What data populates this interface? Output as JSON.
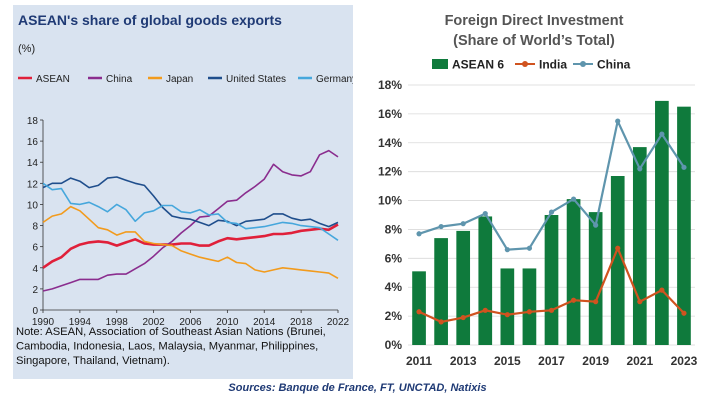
{
  "footer": {
    "sources": "Sources: Banque de France, FT, UNCTAD, Natixis"
  },
  "chart_data": [
    {
      "type": "line",
      "title": "ASEAN's share of global goods exports",
      "ylabel": "(%)",
      "ylim": [
        0,
        18
      ],
      "yticks": [
        0,
        2,
        4,
        6,
        8,
        10,
        12,
        14,
        16,
        18
      ],
      "xlim": [
        1990,
        2022
      ],
      "xticks": [
        1990,
        1994,
        1998,
        2002,
        2006,
        2010,
        2014,
        2018,
        2022
      ],
      "x": [
        1990,
        1991,
        1992,
        1993,
        1994,
        1995,
        1996,
        1997,
        1998,
        1999,
        2000,
        2001,
        2002,
        2003,
        2004,
        2005,
        2006,
        2007,
        2008,
        2009,
        2010,
        2011,
        2012,
        2013,
        2014,
        2015,
        2016,
        2017,
        2018,
        2019,
        2020,
        2021,
        2022
      ],
      "legend_position": "top",
      "grid": false,
      "series": [
        {
          "name": "ASEAN",
          "color": "#e0203a",
          "values": [
            4.0,
            4.6,
            5.0,
            5.8,
            6.2,
            6.4,
            6.5,
            6.4,
            6.1,
            6.4,
            6.7,
            6.3,
            6.2,
            6.2,
            6.2,
            6.3,
            6.3,
            6.1,
            6.1,
            6.5,
            6.8,
            6.7,
            6.8,
            6.9,
            7.0,
            7.2,
            7.2,
            7.3,
            7.5,
            7.6,
            7.7,
            7.6,
            8.1
          ]
        },
        {
          "name": "China",
          "color": "#8a2d8e",
          "values": [
            1.8,
            2.0,
            2.3,
            2.6,
            2.9,
            2.9,
            2.9,
            3.3,
            3.4,
            3.4,
            3.9,
            4.4,
            5.1,
            5.9,
            6.5,
            7.3,
            8.0,
            8.8,
            8.9,
            9.6,
            10.3,
            10.4,
            11.1,
            11.7,
            12.4,
            13.8,
            13.1,
            12.8,
            12.7,
            13.1,
            14.7,
            15.1,
            14.5
          ]
        },
        {
          "name": "Japan",
          "color": "#f29b1d",
          "values": [
            8.3,
            8.9,
            9.1,
            9.8,
            9.4,
            8.6,
            7.8,
            7.6,
            7.1,
            7.4,
            7.4,
            6.5,
            6.3,
            6.2,
            6.1,
            5.6,
            5.3,
            5.0,
            4.8,
            4.6,
            5.0,
            4.5,
            4.4,
            3.8,
            3.6,
            3.8,
            4.0,
            3.9,
            3.8,
            3.7,
            3.6,
            3.5,
            3.0
          ]
        },
        {
          "name": "United States",
          "color": "#1f4e8c",
          "values": [
            11.6,
            12.0,
            12.0,
            12.5,
            12.2,
            11.6,
            11.8,
            12.5,
            12.6,
            12.3,
            12.0,
            11.8,
            10.8,
            9.7,
            8.9,
            8.7,
            8.6,
            8.3,
            8.0,
            8.5,
            8.4,
            8.0,
            8.4,
            8.5,
            8.6,
            9.1,
            9.1,
            8.7,
            8.5,
            8.6,
            8.2,
            7.9,
            8.3
          ]
        },
        {
          "name": "Germany",
          "color": "#46a7dc",
          "values": [
            12.0,
            11.4,
            11.5,
            10.1,
            10.0,
            10.2,
            9.8,
            9.3,
            10.0,
            9.5,
            8.4,
            9.2,
            9.4,
            9.9,
            9.9,
            9.3,
            9.2,
            9.5,
            9.0,
            9.1,
            8.3,
            8.2,
            7.7,
            7.8,
            7.9,
            8.1,
            8.3,
            8.2,
            8.0,
            7.9,
            7.8,
            7.2,
            6.6
          ]
        }
      ],
      "note": "Note: ASEAN, Association of Southeast Asian Nations (Brunei, Cambodia, Indonesia, Laos, Malaysia, Myanmar, Philippines, Singapore, Thailand, Vietnam)."
    },
    {
      "type": "bar",
      "title": "Foreign Direct Investment",
      "subtitle": "(Share of World’s Total)",
      "ylim": [
        0,
        18
      ],
      "yticks": [
        "0%",
        "2%",
        "4%",
        "6%",
        "8%",
        "10%",
        "12%",
        "14%",
        "16%",
        "18%"
      ],
      "categories": [
        2011,
        2012,
        2013,
        2014,
        2015,
        2016,
        2017,
        2018,
        2019,
        2020,
        2021,
        2022,
        2023
      ],
      "xticklabels": [
        "2011",
        "2013",
        "2015",
        "2017",
        "2019",
        "2021",
        "2023"
      ],
      "legend_position": "top",
      "grid": true,
      "series": [
        {
          "name": "ASEAN 6",
          "kind": "bar",
          "color": "#0f7a3c",
          "values": [
            5.1,
            7.4,
            7.9,
            8.9,
            5.3,
            5.3,
            9.0,
            10.1,
            9.2,
            11.7,
            13.7,
            16.9,
            16.5
          ]
        },
        {
          "name": "India",
          "kind": "line",
          "color": "#d0531f",
          "values": [
            2.3,
            1.6,
            1.9,
            2.4,
            2.1,
            2.3,
            2.4,
            3.1,
            3.0,
            6.7,
            3.0,
            3.8,
            2.2
          ]
        },
        {
          "name": "China",
          "kind": "line",
          "color": "#5f95ad",
          "values": [
            7.7,
            8.2,
            8.4,
            9.1,
            6.6,
            6.7,
            9.2,
            10.1,
            8.3,
            15.5,
            12.2,
            14.6,
            12.3
          ]
        }
      ]
    }
  ]
}
